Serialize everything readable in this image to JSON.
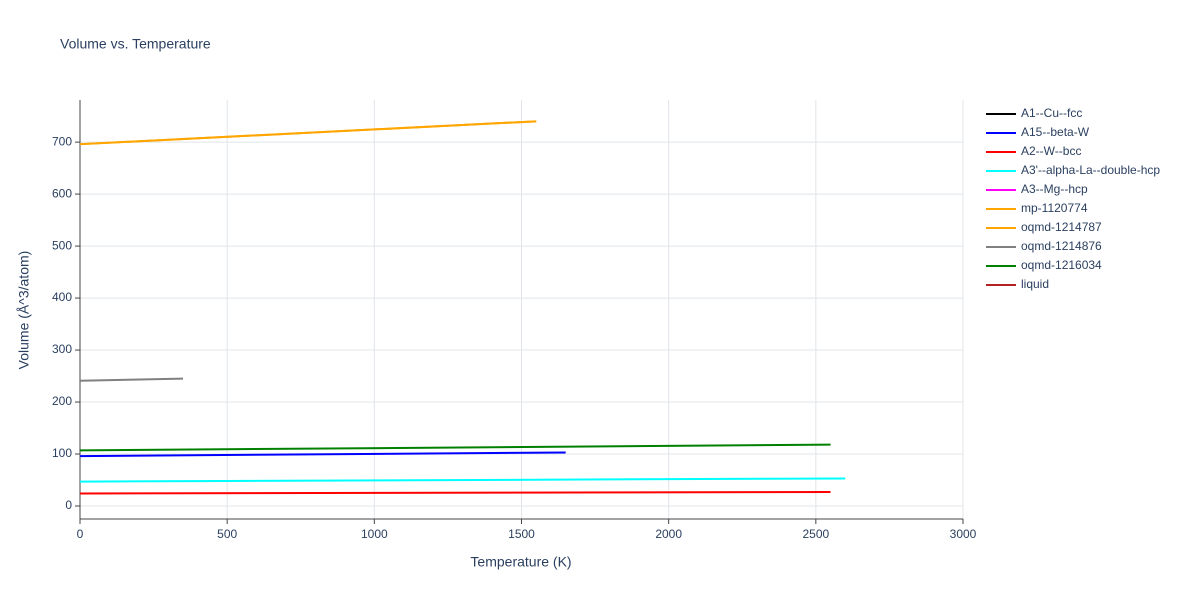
{
  "chart_data": {
    "type": "line",
    "title": "Volume vs. Temperature",
    "x_label": "Temperature (K)",
    "y_label": "Volume (Å^3/atom)",
    "xlim": [
      0,
      3000
    ],
    "ylim": [
      -25,
      781
    ],
    "xticks": [
      0,
      500,
      1000,
      1500,
      2000,
      2500,
      3000
    ],
    "yticks": [
      0,
      100,
      200,
      300,
      400,
      500,
      600,
      700
    ],
    "grid": true,
    "legend": "right",
    "series": [
      {
        "name": "A1--Cu--fcc",
        "color": "#000000",
        "x": [],
        "values": []
      },
      {
        "name": "A15--beta-W",
        "color": "#0000ff",
        "x": [
          0,
          1650
        ],
        "values": [
          96,
          103
        ]
      },
      {
        "name": "A2--W--bcc",
        "color": "#ff0000",
        "x": [
          0,
          2550
        ],
        "values": [
          24,
          27
        ]
      },
      {
        "name": "A3'--alpha-La--double-hcp",
        "color": "#00ffff",
        "x": [
          0,
          2600
        ],
        "values": [
          47,
          53
        ]
      },
      {
        "name": "A3--Mg--hcp",
        "color": "#ff00ff",
        "x": [],
        "values": []
      },
      {
        "name": "mp-1120774",
        "color": "#ffa500",
        "x": [
          0,
          1550
        ],
        "values": [
          696,
          740
        ]
      },
      {
        "name": "oqmd-1214787",
        "color": "#ffa500",
        "x": [
          0,
          1550
        ],
        "values": [
          696,
          740
        ]
      },
      {
        "name": "oqmd-1214876",
        "color": "#808080",
        "x": [
          0,
          350
        ],
        "values": [
          241,
          245
        ]
      },
      {
        "name": "oqmd-1216034",
        "color": "#008000",
        "x": [
          0,
          2550
        ],
        "values": [
          107,
          118
        ]
      },
      {
        "name": "liquid",
        "color": "#b22222",
        "x": [],
        "values": []
      }
    ]
  }
}
